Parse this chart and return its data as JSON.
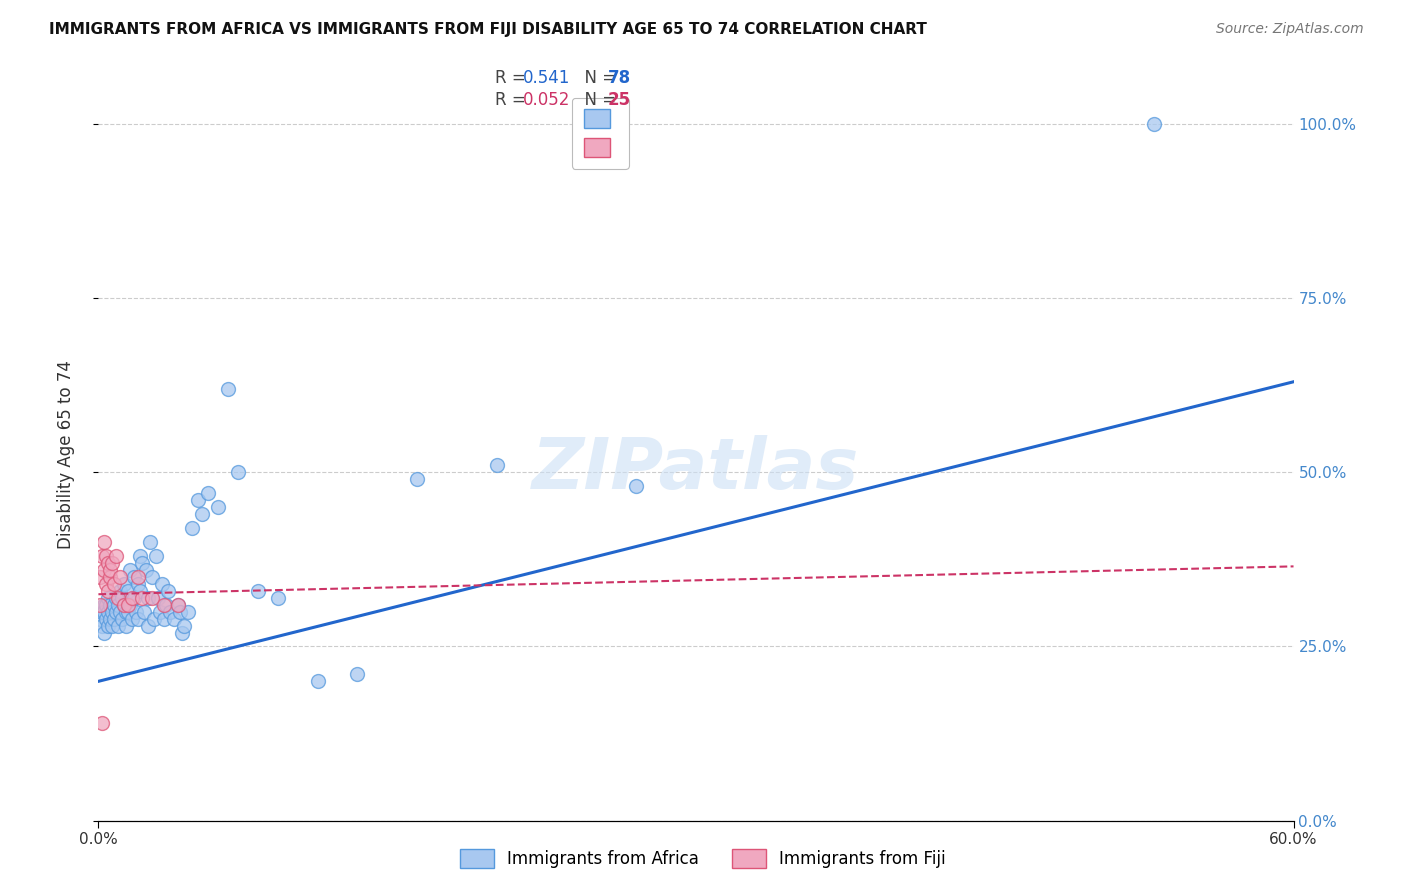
{
  "title": "IMMIGRANTS FROM AFRICA VS IMMIGRANTS FROM FIJI DISABILITY AGE 65 TO 74 CORRELATION CHART",
  "source": "Source: ZipAtlas.com",
  "ylabel_label": "Disability Age 65 to 74",
  "xlim": [
    0.0,
    0.6
  ],
  "ylim": [
    0.0,
    1.05
  ],
  "yticks": [
    0.0,
    0.25,
    0.5,
    0.75,
    1.0
  ],
  "xticks": [
    0.0,
    0.6
  ],
  "xtick_labels": [
    "0.0%",
    "60.0%"
  ],
  "right_ytick_labels": [
    "0.0%",
    "25.0%",
    "50.0%",
    "75.0%",
    "100.0%"
  ],
  "africa_color": "#a8c8f0",
  "fiji_color": "#f0a8c0",
  "africa_edge_color": "#5599dd",
  "fiji_edge_color": "#dd5577",
  "africa_line_color": "#2266cc",
  "fiji_line_color": "#cc3366",
  "grid_color": "#cccccc",
  "right_tick_color": "#4488cc",
  "legend_africa_R": "0.541",
  "legend_africa_N": "78",
  "legend_fiji_R": "0.052",
  "legend_fiji_N": "25",
  "watermark": "ZIPatlas",
  "africa_scatter_x": [
    0.001,
    0.002,
    0.002,
    0.003,
    0.003,
    0.003,
    0.004,
    0.004,
    0.005,
    0.005,
    0.005,
    0.006,
    0.006,
    0.007,
    0.007,
    0.008,
    0.008,
    0.009,
    0.009,
    0.01,
    0.01,
    0.011,
    0.011,
    0.012,
    0.012,
    0.013,
    0.013,
    0.014,
    0.014,
    0.015,
    0.015,
    0.016,
    0.016,
    0.017,
    0.018,
    0.018,
    0.019,
    0.02,
    0.02,
    0.021,
    0.021,
    0.022,
    0.023,
    0.024,
    0.025,
    0.025,
    0.026,
    0.027,
    0.028,
    0.029,
    0.03,
    0.031,
    0.032,
    0.033,
    0.034,
    0.035,
    0.036,
    0.038,
    0.04,
    0.041,
    0.042,
    0.043,
    0.045,
    0.047,
    0.05,
    0.052,
    0.055,
    0.06,
    0.065,
    0.07,
    0.08,
    0.09,
    0.11,
    0.13,
    0.16,
    0.2,
    0.27,
    0.53
  ],
  "africa_scatter_y": [
    0.29,
    0.28,
    0.3,
    0.31,
    0.27,
    0.3,
    0.29,
    0.31,
    0.28,
    0.3,
    0.32,
    0.29,
    0.31,
    0.28,
    0.3,
    0.31,
    0.29,
    0.32,
    0.3,
    0.31,
    0.28,
    0.33,
    0.3,
    0.29,
    0.32,
    0.31,
    0.34,
    0.3,
    0.28,
    0.33,
    0.3,
    0.36,
    0.31,
    0.29,
    0.35,
    0.32,
    0.3,
    0.34,
    0.29,
    0.38,
    0.33,
    0.37,
    0.3,
    0.36,
    0.32,
    0.28,
    0.4,
    0.35,
    0.29,
    0.38,
    0.32,
    0.3,
    0.34,
    0.29,
    0.31,
    0.33,
    0.3,
    0.29,
    0.31,
    0.3,
    0.27,
    0.28,
    0.3,
    0.42,
    0.46,
    0.44,
    0.47,
    0.45,
    0.62,
    0.5,
    0.33,
    0.32,
    0.2,
    0.21,
    0.49,
    0.51,
    0.48,
    1.0
  ],
  "fiji_scatter_x": [
    0.001,
    0.001,
    0.002,
    0.002,
    0.003,
    0.003,
    0.004,
    0.004,
    0.005,
    0.005,
    0.006,
    0.006,
    0.007,
    0.008,
    0.009,
    0.01,
    0.011,
    0.013,
    0.015,
    0.017,
    0.02,
    0.022,
    0.027,
    0.033,
    0.04
  ],
  "fiji_scatter_y": [
    0.31,
    0.35,
    0.38,
    0.14,
    0.36,
    0.4,
    0.34,
    0.38,
    0.33,
    0.37,
    0.35,
    0.36,
    0.37,
    0.34,
    0.38,
    0.32,
    0.35,
    0.31,
    0.31,
    0.32,
    0.35,
    0.32,
    0.32,
    0.31,
    0.31
  ],
  "africa_trend_x": [
    0.0,
    0.6
  ],
  "africa_trend_y": [
    0.2,
    0.63
  ],
  "fiji_trend_x": [
    0.0,
    0.6
  ],
  "fiji_trend_y": [
    0.325,
    0.365
  ]
}
